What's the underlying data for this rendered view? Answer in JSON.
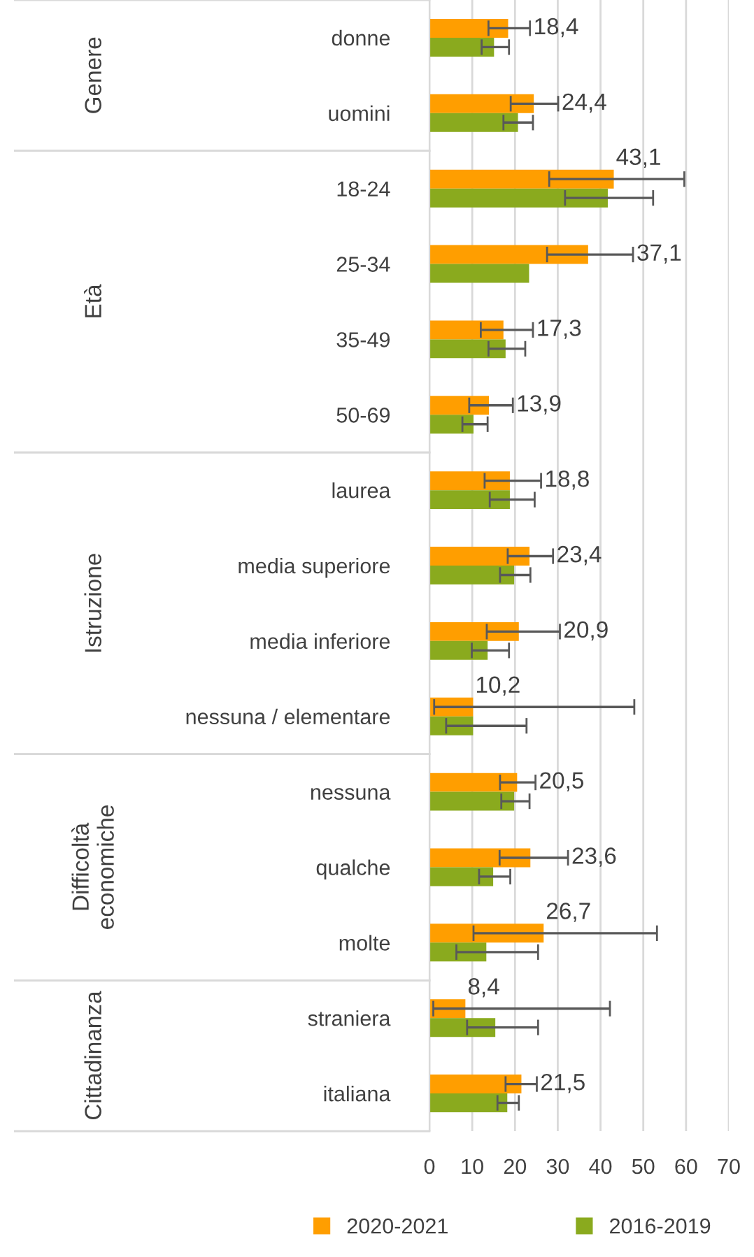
{
  "chart_data": {
    "type": "bar",
    "orientation": "horizontal",
    "categories": [
      "donne",
      "uomini",
      "18-24",
      "25-34",
      "35-49",
      "50-69",
      "laurea",
      "media superiore",
      "media inferiore",
      "nessuna / elementare",
      "nessuna",
      "qualche",
      "molte",
      "straniera",
      "italiana"
    ],
    "series": [
      {
        "name": "2020-2021",
        "color": "#ff9e00",
        "values": [
          18.4,
          24.4,
          43.1,
          37.1,
          17.3,
          13.9,
          18.8,
          23.4,
          20.9,
          10.2,
          20.5,
          23.6,
          26.7,
          8.4,
          21.5
        ],
        "value_labels": [
          "18,4",
          "24,4",
          "43,1",
          "37,1",
          "17,3",
          "13,9",
          "18,8",
          "23,4",
          "20,9",
          "10,2",
          "20,5",
          "23,6",
          "26,7",
          "8,4",
          "21,5"
        ],
        "errors": [
          [
            13.8,
            23.5
          ],
          [
            19.0,
            30.1
          ],
          [
            28.0,
            59.6
          ],
          [
            27.5,
            47.6
          ],
          [
            12.0,
            24.2
          ],
          [
            9.3,
            19.5
          ],
          [
            12.9,
            26.1
          ],
          [
            18.3,
            28.9
          ],
          [
            13.4,
            30.5
          ],
          [
            1.1,
            47.9
          ],
          [
            16.5,
            24.8
          ],
          [
            16.4,
            32.4
          ],
          [
            10.3,
            53.2
          ],
          [
            0.9,
            42.2
          ],
          [
            17.8,
            25.1
          ]
        ]
      },
      {
        "name": "2016-2019",
        "color": "#8aaa1e",
        "values": [
          15.1,
          20.7,
          41.7,
          23.3,
          17.8,
          10.3,
          18.8,
          19.8,
          13.6,
          10.2,
          19.8,
          14.9,
          13.3,
          15.4,
          18.2
        ],
        "errors": [
          [
            12.2,
            18.6
          ],
          [
            17.3,
            24.2
          ],
          [
            31.7,
            52.3
          ],
          null,
          [
            13.8,
            22.4
          ],
          [
            7.7,
            13.6
          ],
          [
            14.1,
            24.6
          ],
          [
            16.5,
            23.6
          ],
          [
            9.9,
            18.6
          ],
          [
            3.9,
            22.7
          ],
          [
            16.8,
            23.4
          ],
          [
            11.6,
            18.9
          ],
          [
            6.3,
            25.4
          ],
          [
            8.8,
            25.4
          ],
          [
            15.9,
            20.9
          ]
        ]
      }
    ],
    "annotations": [
      "Genere",
      "Età",
      "Istruzione",
      "Difficoltà\neconomiche",
      "Cittadinanza"
    ],
    "xlim": [
      0,
      70
    ],
    "xticks": [
      0,
      10,
      20,
      30,
      40,
      50,
      60,
      70
    ],
    "grid": "x",
    "legend": "bottom"
  }
}
